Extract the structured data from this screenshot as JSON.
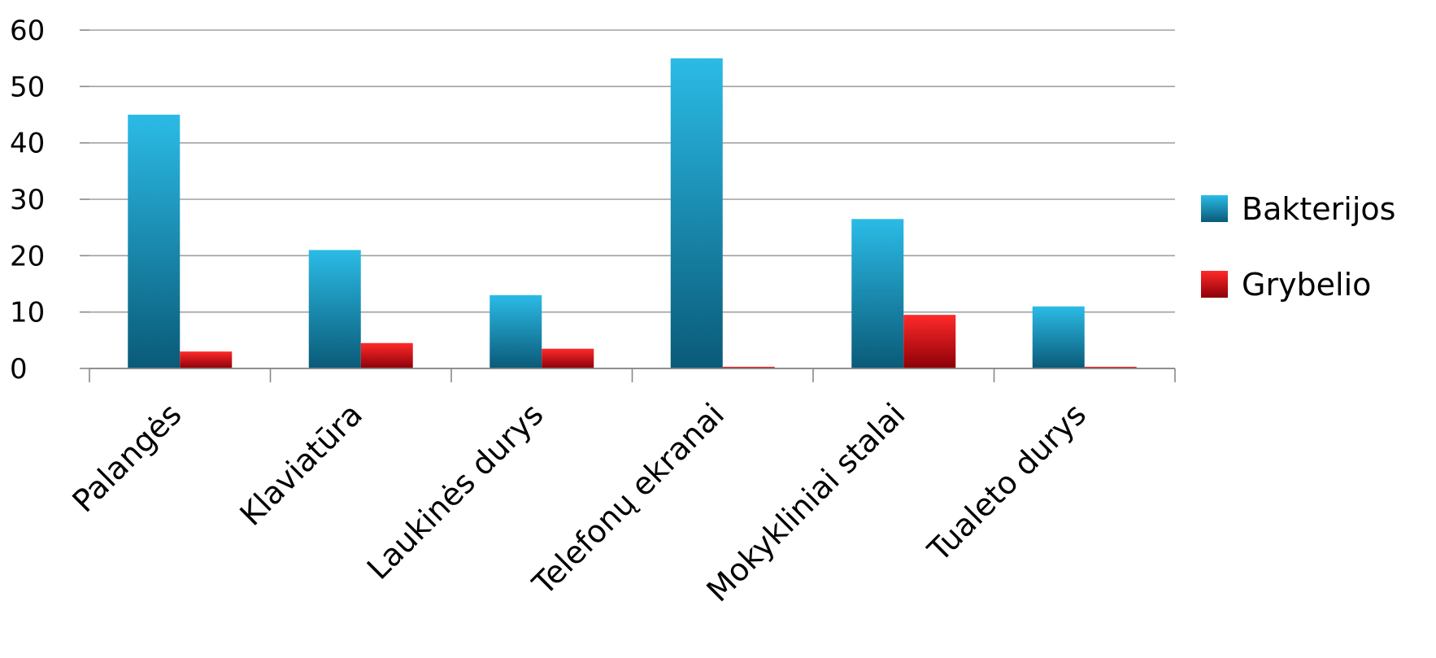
{
  "chart_data": {
    "type": "bar",
    "categories": [
      "Palangės",
      "Klaviatūra",
      "Laukinės durys",
      "Telefonų ekranai",
      "Mokykliniai stalai",
      "Tualeto durys"
    ],
    "series": [
      {
        "name": "Bakterijos",
        "values": [
          45,
          21,
          13,
          55,
          26.5,
          11
        ],
        "color": "#1a9cc4"
      },
      {
        "name": "Grybelio",
        "values": [
          3,
          4.5,
          3.5,
          0.3,
          9.5,
          0.3
        ],
        "color": "#e0141c"
      }
    ],
    "yticks": [
      "0",
      "10",
      "20",
      "30",
      "40",
      "50",
      "60"
    ],
    "ylim": [
      0,
      60
    ],
    "grid": true,
    "legend": "right"
  }
}
